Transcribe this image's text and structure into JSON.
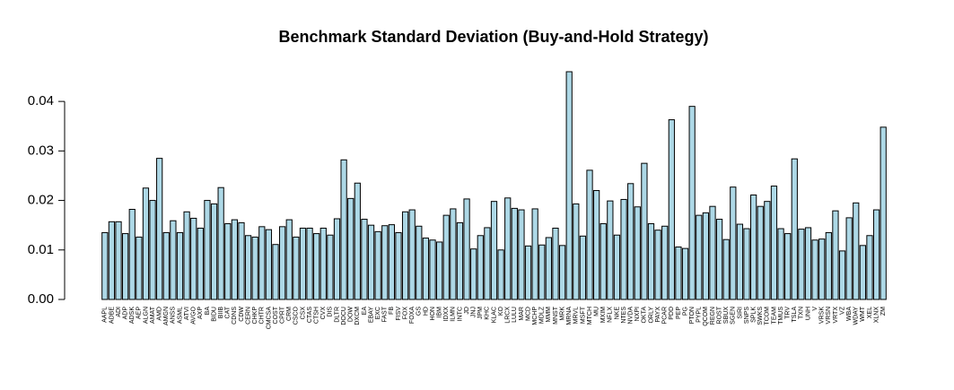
{
  "chart_data": {
    "type": "bar",
    "title": "Benchmark Standard Deviation (Buy-and-Hold Strategy)",
    "categories": [
      "AAPL",
      "ADBE",
      "ADI",
      "ADP",
      "ADSK",
      "AEP",
      "ALGN",
      "AMAT",
      "AMD",
      "AMGN",
      "ANSS",
      "ASML",
      "ATVI",
      "AVGO",
      "AXP",
      "BA",
      "BIDU",
      "BIIB",
      "CAT",
      "CDNS",
      "CDW",
      "CERN",
      "CHKP",
      "CHTR",
      "CMCSA",
      "COST",
      "CPRT",
      "CRM",
      "CSCO",
      "CSX",
      "CTAS",
      "CTSH",
      "CVX",
      "DIS",
      "DLTR",
      "DOCU",
      "DOW",
      "DXCM",
      "EA",
      "EBAY",
      "EXC",
      "FAST",
      "FB",
      "FISV",
      "FOX",
      "FOXA",
      "GS",
      "HD",
      "HON",
      "IBM",
      "IDXX",
      "ILMN",
      "INTC",
      "JD",
      "JNJ",
      "JPM",
      "KHC",
      "KLAC",
      "KO",
      "LRCX",
      "LULU",
      "MAR",
      "MCD",
      "MCHP",
      "MDLZ",
      "MMM",
      "MNST",
      "MRK",
      "MRNA",
      "MRVL",
      "MSFT",
      "MTCH",
      "MU",
      "MXIM",
      "NFLX",
      "NKE",
      "NTES",
      "NVDA",
      "NXPI",
      "OKTA",
      "ORLY",
      "PAYX",
      "PCAR",
      "PDD",
      "PEP",
      "PG",
      "PTON",
      "PYPL",
      "QCOM",
      "REGN",
      "ROST",
      "SBUX",
      "SGEN",
      "SIRI",
      "SNPS",
      "SPLK",
      "SWKS",
      "TCOM",
      "TEAM",
      "TMUS",
      "TRV",
      "TSLA",
      "TXN",
      "UNH",
      "V",
      "VRSK",
      "VRSN",
      "VRTX",
      "VZ",
      "WBA",
      "WDAY",
      "WMT",
      "XEL",
      "XLNX",
      "ZM"
    ],
    "values": [
      0.0135,
      0.0157,
      0.0157,
      0.0133,
      0.0182,
      0.0126,
      0.0225,
      0.02,
      0.0285,
      0.0135,
      0.0159,
      0.0135,
      0.0177,
      0.0164,
      0.0144,
      0.02,
      0.0193,
      0.0226,
      0.0153,
      0.0161,
      0.0155,
      0.0129,
      0.0126,
      0.0147,
      0.0141,
      0.0111,
      0.0147,
      0.0161,
      0.0126,
      0.0144,
      0.0144,
      0.0133,
      0.0144,
      0.013,
      0.0163,
      0.0282,
      0.0204,
      0.0235,
      0.0162,
      0.015,
      0.0137,
      0.0149,
      0.0151,
      0.0135,
      0.0177,
      0.0181,
      0.0148,
      0.0124,
      0.012,
      0.0116,
      0.017,
      0.0183,
      0.0155,
      0.0203,
      0.0102,
      0.0129,
      0.0145,
      0.0198,
      0.01,
      0.0205,
      0.0184,
      0.0181,
      0.0108,
      0.0183,
      0.011,
      0.0125,
      0.0144,
      0.0109,
      0.046,
      0.0193,
      0.0128,
      0.0261,
      0.022,
      0.0153,
      0.0199,
      0.013,
      0.0202,
      0.0234,
      0.0187,
      0.0275,
      0.0153,
      0.014,
      0.0148,
      0.0363,
      0.0106,
      0.0103,
      0.039,
      0.017,
      0.0175,
      0.0188,
      0.0162,
      0.0121,
      0.0227,
      0.0152,
      0.0143,
      0.0211,
      0.0188,
      0.0198,
      0.0229,
      0.0143,
      0.0133,
      0.0284,
      0.0142,
      0.0145,
      0.012,
      0.0122,
      0.0135,
      0.0179,
      0.0098,
      0.0165,
      0.0195,
      0.0109,
      0.0129,
      0.0181,
      0.0348
    ],
    "color": "#add8e6",
    "ylim": [
      0,
      0.046
    ],
    "yticks": [
      {
        "value": 0,
        "label": "0.00"
      },
      {
        "value": 0.01,
        "label": "0.01"
      },
      {
        "value": 0.02,
        "label": "0.02"
      },
      {
        "value": 0.03,
        "label": "0.03"
      },
      {
        "value": 0.04,
        "label": "0.04"
      }
    ]
  }
}
